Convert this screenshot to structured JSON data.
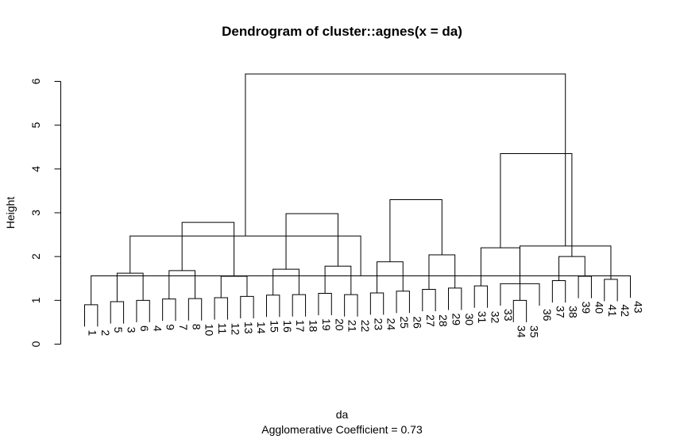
{
  "chart_data": {
    "type": "dendrogram",
    "title": "Dendrogram of  cluster::agnes(x = da)",
    "xlabel": "da",
    "ylabel": "Height",
    "subtitle": "Agglomerative Coefficient =  0.73",
    "ylim": [
      0,
      6
    ],
    "yticks": [
      "0",
      "1",
      "2",
      "3",
      "4",
      "5",
      "6"
    ],
    "leaves": [
      "1",
      "2",
      "5",
      "3",
      "6",
      "4",
      "9",
      "7",
      "8",
      "10",
      "11",
      "12",
      "13",
      "14",
      "15",
      "16",
      "17",
      "18",
      "19",
      "20",
      "21",
      "22",
      "23",
      "24",
      "25",
      "26",
      "27",
      "28",
      "29",
      "30",
      "31",
      "32",
      "33",
      "34",
      "35",
      "36",
      "37",
      "38",
      "39",
      "40",
      "41",
      "42",
      "43"
    ],
    "merges": [
      {
        "left": 0,
        "right": 1,
        "height": 0.9
      },
      {
        "left": 2,
        "right": 3,
        "height": 0.97
      },
      {
        "left": 4,
        "right": 5,
        "height": 1.0
      },
      {
        "left": 6,
        "right": 7,
        "height": 1.03
      },
      {
        "left": 8,
        "right": 9,
        "height": 1.04
      },
      {
        "left": 10,
        "right": 11,
        "height": 1.06
      },
      {
        "left": 12,
        "right": 13,
        "height": 1.09
      },
      {
        "left": 14,
        "right": 15,
        "height": 1.12
      },
      {
        "left": 16,
        "right": 17,
        "height": 1.13
      },
      {
        "left": 18,
        "right": 19,
        "height": 1.16
      },
      {
        "left": 20,
        "right": 21,
        "height": 1.13
      },
      {
        "left": 22,
        "right": 23,
        "height": 1.17
      },
      {
        "left": 24,
        "right": 25,
        "height": 1.21
      },
      {
        "left": 26,
        "right": 27,
        "height": 1.25
      },
      {
        "left": 28,
        "right": 29,
        "height": 1.28
      },
      {
        "left": 30,
        "right": 31,
        "height": 1.33
      },
      {
        "left": 33,
        "right": 34,
        "height": 1.0
      },
      {
        "left": 32,
        "right": 35,
        "height": 1.38
      },
      {
        "left": 36,
        "right": 37,
        "height": 1.45
      },
      {
        "left": 38,
        "right": 39,
        "height": 1.55
      },
      {
        "left": 40,
        "right": 41,
        "height": 1.48
      },
      {
        "left": 42,
        "right": 43,
        "height": 1.56
      },
      {
        "left": 44,
        "right": 45,
        "height": 1.62
      },
      {
        "left": 46,
        "right": 47,
        "height": 1.68
      },
      {
        "left": 48,
        "right": 49,
        "height": 1.55
      },
      {
        "left": 50,
        "right": 51,
        "height": 1.71
      },
      {
        "left": 52,
        "right": 53,
        "height": 1.78
      },
      {
        "left": 54,
        "right": 55,
        "height": 1.88
      },
      {
        "left": 56,
        "right": 57,
        "height": 2.04
      },
      {
        "left": 58,
        "right": 59,
        "height": 2.2
      },
      {
        "left": 61,
        "right": 62,
        "height": 2.0
      },
      {
        "left": 60,
        "right": 63,
        "height": 2.24
      },
      {
        "left": 64,
        "right": 65,
        "height": 2.47
      },
      {
        "left": 66,
        "right": 67,
        "height": 2.78
      },
      {
        "left": 68,
        "right": 69,
        "height": 2.98
      },
      {
        "left": 70,
        "right": 71,
        "height": 3.3
      },
      {
        "left": 72,
        "right": 73,
        "height": 4.35
      },
      {
        "left": 74,
        "right": 75,
        "height": 6.17
      }
    ]
  }
}
